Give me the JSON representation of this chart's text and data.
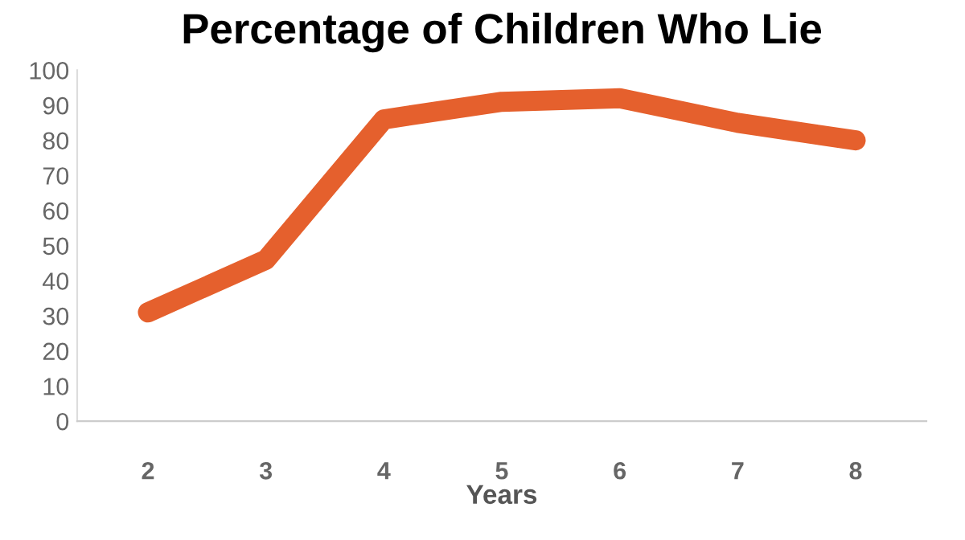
{
  "chart_data": {
    "type": "line",
    "title": "Percentage of Children Who Lie",
    "xlabel": "Years",
    "categories": [
      "2",
      "3",
      "4",
      "5",
      "6",
      "7",
      "8"
    ],
    "series": [
      {
        "color": "#e5602d",
        "values": [
          31,
          46,
          86,
          91,
          92,
          85,
          80
        ]
      }
    ],
    "ylim": [
      0,
      100
    ],
    "yticks": [
      0,
      10,
      20,
      30,
      40,
      50,
      60,
      70,
      80,
      90,
      100
    ],
    "grid": false,
    "legend": false,
    "line_style": "solid"
  }
}
